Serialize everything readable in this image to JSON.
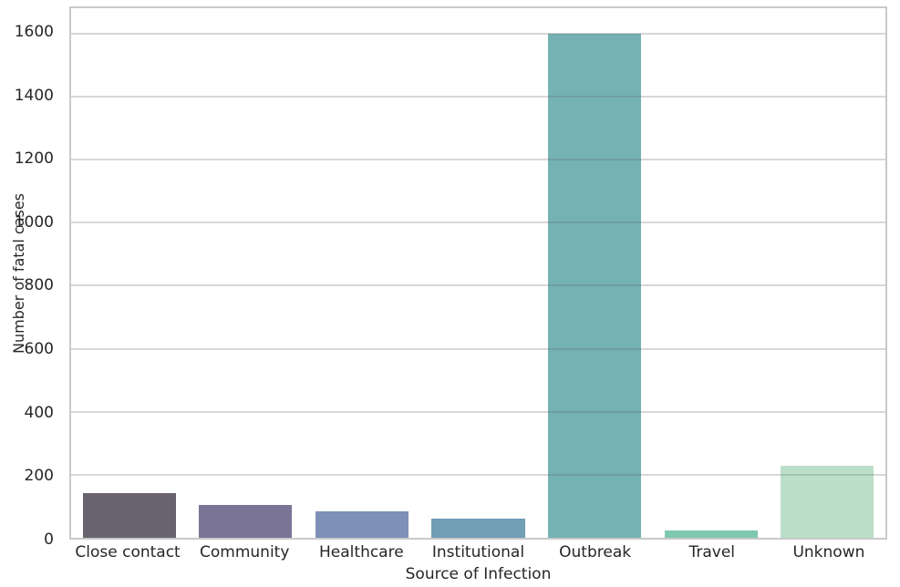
{
  "chart_data": {
    "type": "bar",
    "categories": [
      "Close contact",
      "Community",
      "Healthcare",
      "Institutional",
      "Outbreak",
      "Travel",
      "Unknown"
    ],
    "values": [
      142,
      104,
      83,
      60,
      1600,
      23,
      228
    ],
    "xlabel": "Source of Infection",
    "ylabel": "Number of fatal cases",
    "ylim": [
      0,
      1680
    ],
    "yticks": [
      0,
      200,
      400,
      600,
      800,
      1000,
      1200,
      1400,
      1600
    ],
    "grid": true,
    "legend": false,
    "bar_colors": [
      "#69626F",
      "#7A7495",
      "#7E90B5",
      "#6F9EB5",
      "#74B2B4",
      "#7EC8AF",
      "#BBDFC8"
    ],
    "frame_color": "#c9c9c9",
    "grid_color": "#d9d9d9",
    "text_color": "#262626",
    "background_color": "#ffffff"
  }
}
